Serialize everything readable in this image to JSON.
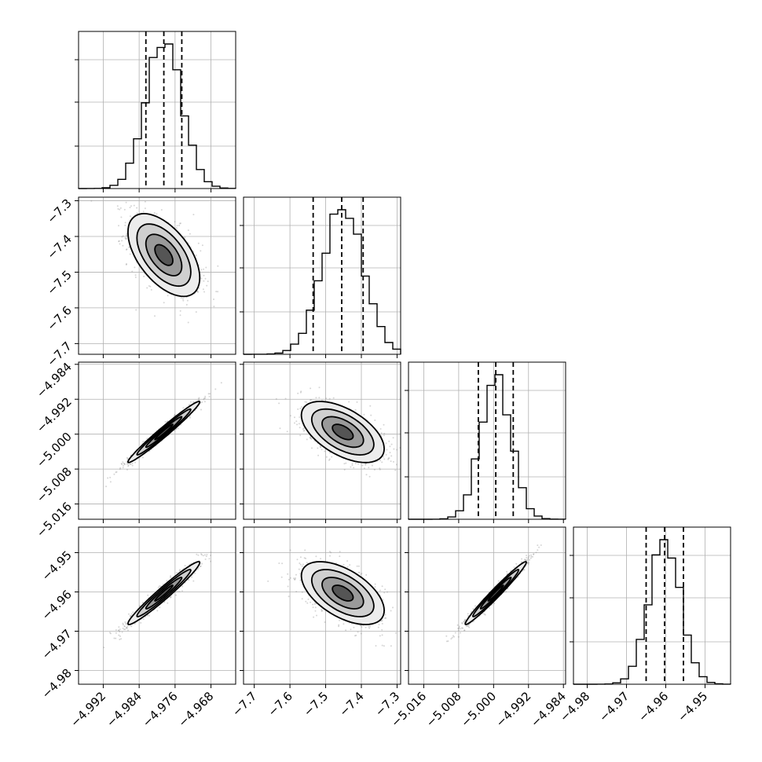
{
  "chart_data": {
    "type": "corner",
    "title": "",
    "grid": true,
    "parameters": [
      {
        "index": 0,
        "mean": -4.9785,
        "std": 0.004,
        "range": [
          -4.9975,
          -4.9625
        ],
        "ticks": [
          -4.992,
          -4.984,
          -4.976,
          -4.968
        ],
        "tick_labels": [
          "−4.992",
          "−4.984",
          "−4.976",
          "−4.968"
        ],
        "quantiles": [
          -4.9825,
          -4.9785,
          -4.9745
        ]
      },
      {
        "index": 1,
        "mean": -7.452,
        "std": 0.058,
        "range": [
          -7.73,
          -7.29
        ],
        "ticks": [
          -7.7,
          -7.6,
          -7.5,
          -7.4,
          -7.3
        ],
        "tick_labels": [
          "−7.7",
          "−7.6",
          "−7.5",
          "−7.4",
          "−7.3"
        ],
        "quantiles": [
          -7.535,
          -7.455,
          -7.395
        ]
      },
      {
        "index": 2,
        "mean": -4.9995,
        "std": 0.0035,
        "range": [
          -5.0195,
          -4.9835
        ],
        "ticks": [
          -5.016,
          -5.008,
          -5.0,
          -4.992,
          -4.984
        ],
        "tick_labels": [
          "−5.016",
          "−5.008",
          "−5.000",
          "−4.992",
          "−4.984"
        ],
        "quantiles": [
          -5.0035,
          -4.9995,
          -4.9955
        ]
      },
      {
        "index": 3,
        "mean": -4.9603,
        "std": 0.004,
        "range": [
          -4.9835,
          -4.9435
        ],
        "ticks": [
          -4.98,
          -4.97,
          -4.96,
          -4.95
        ],
        "tick_labels": [
          "−4.98",
          "−4.97",
          "−4.96",
          "−4.95"
        ],
        "quantiles": [
          -4.965,
          -4.9603,
          -4.9555
        ]
      }
    ],
    "correlations": [
      {
        "i": 1,
        "j": 0,
        "rho": -0.55
      },
      {
        "i": 2,
        "j": 0,
        "rho": 0.98
      },
      {
        "i": 2,
        "j": 1,
        "rho": -0.55
      },
      {
        "i": 3,
        "j": 0,
        "rho": 0.97
      },
      {
        "i": 3,
        "j": 1,
        "rho": -0.55
      },
      {
        "i": 3,
        "j": 2,
        "rho": 0.98
      }
    ],
    "hist_bins": 20,
    "contour_levels_sigma": [
      0.5,
      1.0,
      1.5,
      2.0
    ],
    "colors": {
      "line": "#000000",
      "points": "#808080",
      "grid": "#b0b0b0"
    }
  }
}
